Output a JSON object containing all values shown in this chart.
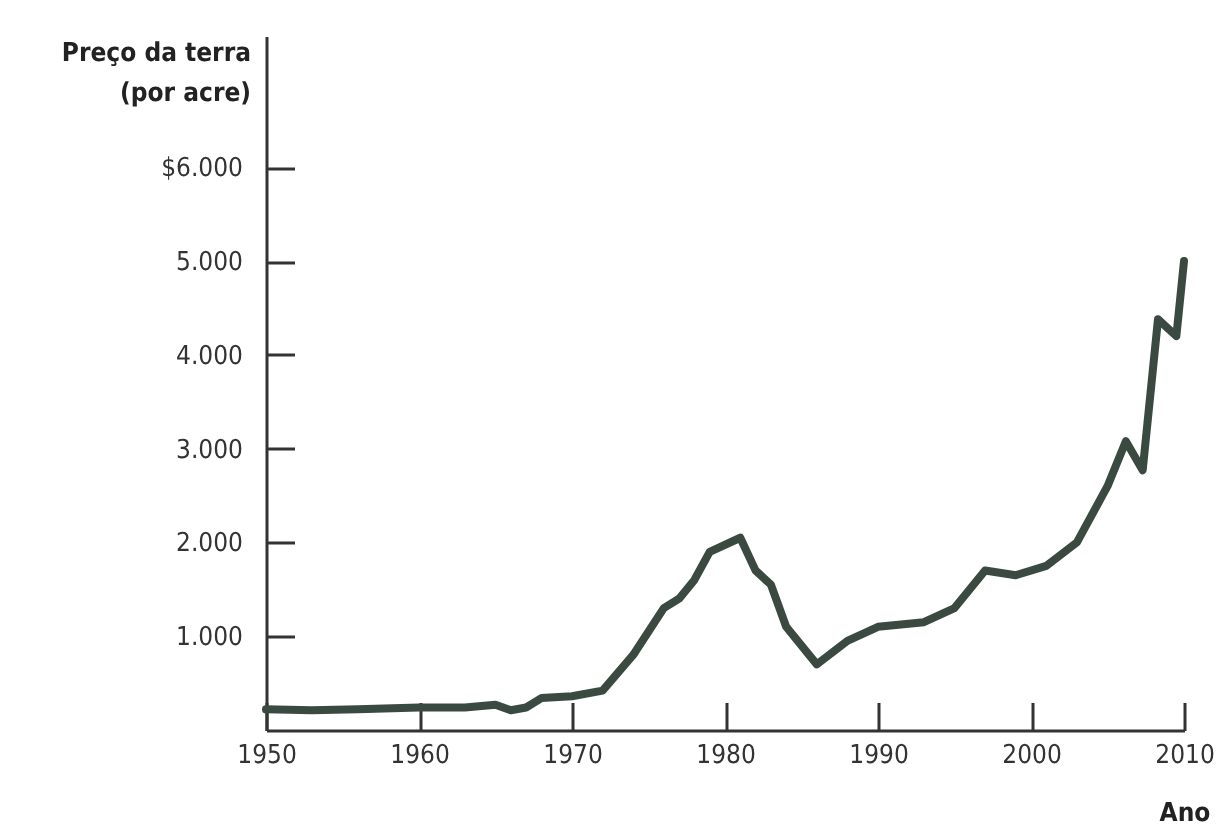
{
  "chart_data": {
    "type": "line",
    "xlabel": "Ano",
    "ylabel": "Preço da terra\n(por acre)",
    "x": [
      1950,
      1953,
      1956,
      1960,
      1963,
      1965,
      1966,
      1967,
      1968,
      1970,
      1972,
      1974,
      1976,
      1977,
      1978,
      1979,
      1981,
      1982,
      1983,
      1984,
      1986,
      1988,
      1990,
      1993,
      1995,
      1996,
      1997,
      1999,
      2001,
      2003,
      2005,
      2006.2,
      2007.3,
      2008.3,
      2009.5,
      2010
    ],
    "series": [
      {
        "color": "#3b4a40",
        "values": [
          220,
          210,
          220,
          240,
          240,
          270,
          210,
          240,
          340,
          360,
          420,
          800,
          1300,
          1400,
          1600,
          1900,
          2050,
          1700,
          1550,
          1100,
          700,
          950,
          1100,
          1150,
          1300,
          1500,
          1700,
          1650,
          1750,
          2000,
          2600,
          3080,
          2770,
          4380,
          4200,
          5000
        ]
      }
    ],
    "xlim": [
      1950,
      2010
    ],
    "xticks": [
      1950,
      1960,
      1970,
      1980,
      1990,
      2000,
      2010
    ],
    "ylim": [
      0,
      7400
    ],
    "yticks": [
      {
        "value": 1000,
        "label": "1.000"
      },
      {
        "value": 2000,
        "label": "2.000"
      },
      {
        "value": 3000,
        "label": "3.000"
      },
      {
        "value": 4000,
        "label": "4.000"
      },
      {
        "value": 5000,
        "label": "5.000"
      },
      {
        "value": 6000,
        "label": "$6.000"
      }
    ],
    "grid": false,
    "line_style": "solid"
  }
}
